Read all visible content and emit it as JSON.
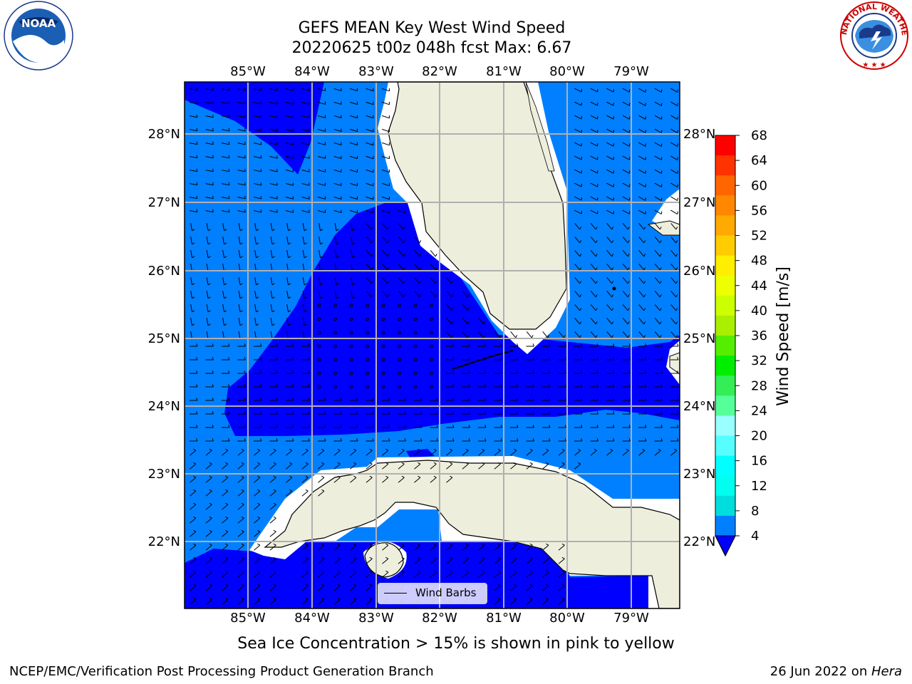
{
  "title": {
    "line1": "GEFS MEAN Key West Wind Speed",
    "line2": "20220625 t00z 048h fcst   Max: 6.67"
  },
  "logos": {
    "left": {
      "icon": "noaa-logo-icon",
      "text": "NOAA"
    },
    "right": {
      "icon": "nws-logo-icon",
      "text": "NATIONAL WEATHER SERVICE"
    }
  },
  "map": {
    "longitude_labels": [
      "85°W",
      "84°W",
      "83°W",
      "82°W",
      "81°W",
      "80°W",
      "79°W"
    ],
    "latitude_labels": [
      "28°N",
      "27°N",
      "26°N",
      "25°N",
      "24°N",
      "23°N",
      "22°N"
    ],
    "legend_label": "Wind Barbs",
    "colors": {
      "land": "#eeeedd",
      "wind_4_8": "#0080ff",
      "wind_below_4": "#0000ff",
      "grid": "#b0b0b0"
    }
  },
  "colorbar": {
    "label": "Wind Speed [m/s]",
    "ticks": [
      "68",
      "64",
      "60",
      "56",
      "52",
      "48",
      "44",
      "40",
      "36",
      "32",
      "28",
      "24",
      "20",
      "16",
      "12",
      "8",
      "4"
    ],
    "colors_top_to_bottom": [
      "#ff0000",
      "#ff3300",
      "#ff6600",
      "#ff8800",
      "#ffaa00",
      "#ffcc00",
      "#ffee00",
      "#eeff00",
      "#ccff00",
      "#aaee00",
      "#55ee00",
      "#00ee00",
      "#33ee55",
      "#55ff99",
      "#99ffff",
      "#55ffff",
      "#00ffff",
      "#00ffee",
      "#00dddd",
      "#0080ff"
    ],
    "extend_color": "#0000ff"
  },
  "subtitle": "Sea Ice Concentration > 15% is shown in pink to yellow",
  "footer": {
    "left": "NCEP/EMC/Verification Post Processing Product Generation Branch",
    "right_date": "26 Jun 2022 on ",
    "right_host": "Hera"
  }
}
